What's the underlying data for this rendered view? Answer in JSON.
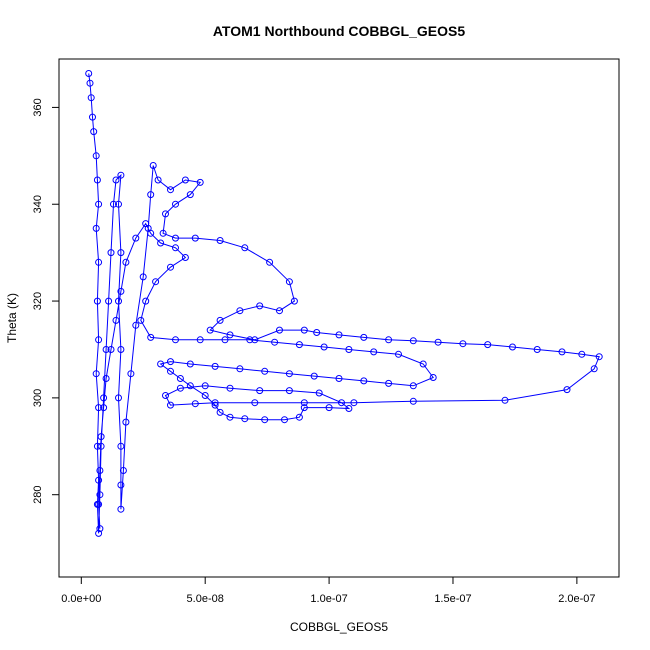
{
  "chart_data": {
    "type": "scatter",
    "title": "ATOM1 Northbound COBBGL_GEOS5",
    "xlabel": "COBBGL_GEOS5",
    "ylabel": "Theta (K)",
    "xlim": [
      -9e-09,
      2.17e-07
    ],
    "ylim": [
      263,
      370
    ],
    "x_ticks": [
      0,
      5e-08,
      1e-07,
      1.5e-07,
      2e-07
    ],
    "x_tick_labels": [
      "0.0e+00",
      "5.0e-08",
      "1.0e-07",
      "1.5e-07",
      "2.0e-07"
    ],
    "y_ticks": [
      280,
      300,
      320,
      340,
      360
    ],
    "y_tick_labels": [
      "280",
      "300",
      "320",
      "340",
      "360"
    ],
    "grid": false,
    "marker": "open-circle",
    "connect_points": true,
    "color": "#0000ff",
    "series": [
      {
        "points": [
          [
            3e-09,
            367
          ],
          [
            3.5e-09,
            365
          ],
          [
            4e-09,
            362
          ],
          [
            4.5e-09,
            358
          ],
          [
            5e-09,
            355
          ],
          [
            6e-09,
            350
          ],
          [
            6.5e-09,
            345
          ],
          [
            7e-09,
            340
          ],
          [
            6e-09,
            335
          ],
          [
            7e-09,
            328
          ],
          [
            6.5e-09,
            320
          ],
          [
            7e-09,
            312
          ],
          [
            6e-09,
            305
          ],
          [
            7e-09,
            298
          ],
          [
            6.5e-09,
            290
          ],
          [
            7e-09,
            283
          ],
          [
            6.5e-09,
            278
          ],
          [
            7e-09,
            272
          ],
          [
            7.5e-09,
            280
          ],
          [
            8e-09,
            290
          ],
          [
            9e-09,
            300
          ],
          [
            1e-08,
            310
          ],
          [
            1.1e-08,
            320
          ],
          [
            1.2e-08,
            330
          ],
          [
            1.3e-08,
            340
          ],
          [
            1.4e-08,
            345
          ],
          [
            1.6e-08,
            346
          ],
          [
            1.5e-08,
            340
          ],
          [
            1.6e-08,
            330
          ],
          [
            1.5e-08,
            320
          ],
          [
            1.6e-08,
            310
          ],
          [
            1.5e-08,
            300
          ],
          [
            1.6e-08,
            290
          ],
          [
            1.6e-08,
            282
          ],
          [
            1.6e-08,
            277
          ],
          [
            1.7e-08,
            285
          ],
          [
            1.8e-08,
            295
          ],
          [
            2e-08,
            305
          ],
          [
            2.2e-08,
            315
          ],
          [
            2.5e-08,
            325
          ],
          [
            2.7e-08,
            335
          ],
          [
            2.8e-08,
            342
          ],
          [
            2.9e-08,
            348
          ],
          [
            3.1e-08,
            345
          ],
          [
            3.6e-08,
            343
          ],
          [
            4.2e-08,
            345
          ],
          [
            4.8e-08,
            344.5
          ],
          [
            4.4e-08,
            342
          ],
          [
            3.8e-08,
            340
          ],
          [
            3.4e-08,
            338
          ],
          [
            3.3e-08,
            334
          ],
          [
            3.8e-08,
            333
          ],
          [
            4.6e-08,
            333
          ],
          [
            5.6e-08,
            332.5
          ],
          [
            6.6e-08,
            331
          ],
          [
            7.6e-08,
            328
          ],
          [
            8.4e-08,
            324
          ],
          [
            8.6e-08,
            320
          ],
          [
            8e-08,
            318
          ],
          [
            7.2e-08,
            319
          ],
          [
            6.4e-08,
            318
          ],
          [
            5.6e-08,
            316
          ],
          [
            5.2e-08,
            314
          ],
          [
            6e-08,
            313
          ],
          [
            7e-08,
            312
          ],
          [
            8e-08,
            314
          ],
          [
            9e-08,
            314
          ],
          [
            9.5e-08,
            313.5
          ],
          [
            1.04e-07,
            313
          ],
          [
            1.14e-07,
            312.5
          ],
          [
            1.24e-07,
            312
          ],
          [
            1.34e-07,
            311.8
          ],
          [
            1.44e-07,
            311.5
          ],
          [
            1.54e-07,
            311.2
          ],
          [
            1.64e-07,
            311
          ],
          [
            1.74e-07,
            310.5
          ],
          [
            1.84e-07,
            310
          ],
          [
            1.94e-07,
            309.5
          ],
          [
            2.02e-07,
            309
          ],
          [
            2.09e-07,
            308.5
          ],
          [
            2.07e-07,
            306
          ],
          [
            1.96e-07,
            301.7
          ],
          [
            1.71e-07,
            299.5
          ],
          [
            1.34e-07,
            299.3
          ],
          [
            1.1e-07,
            299
          ],
          [
            9e-08,
            299
          ],
          [
            7e-08,
            299
          ],
          [
            5.4e-08,
            299
          ],
          [
            4.6e-08,
            298.8
          ],
          [
            3.6e-08,
            298.5
          ],
          [
            3.4e-08,
            300.5
          ],
          [
            4e-08,
            302
          ],
          [
            5e-08,
            302.5
          ],
          [
            6e-08,
            302
          ],
          [
            7.2e-08,
            301.5
          ],
          [
            8.4e-08,
            301.5
          ],
          [
            9.6e-08,
            301
          ],
          [
            1.05e-07,
            299
          ],
          [
            1.08e-07,
            297.8
          ],
          [
            1e-07,
            298
          ],
          [
            9e-08,
            298
          ],
          [
            8.8e-08,
            296
          ],
          [
            8.2e-08,
            295.5
          ],
          [
            7.4e-08,
            295.5
          ],
          [
            6.6e-08,
            295.7
          ],
          [
            6e-08,
            296
          ],
          [
            5.6e-08,
            297
          ],
          [
            5.4e-08,
            298.5
          ],
          [
            5e-08,
            300.5
          ],
          [
            4.4e-08,
            302.5
          ],
          [
            4e-08,
            304
          ],
          [
            3.6e-08,
            305.5
          ],
          [
            3.2e-08,
            307
          ],
          [
            3.6e-08,
            307.5
          ],
          [
            4.4e-08,
            307
          ],
          [
            5.4e-08,
            306.5
          ],
          [
            6.4e-08,
            306
          ],
          [
            7.4e-08,
            305.5
          ],
          [
            8.4e-08,
            305
          ],
          [
            9.4e-08,
            304.5
          ],
          [
            1.04e-07,
            304
          ],
          [
            1.14e-07,
            303.5
          ],
          [
            1.24e-07,
            303
          ],
          [
            1.34e-07,
            302.5
          ],
          [
            1.42e-07,
            304.2
          ],
          [
            1.38e-07,
            307
          ],
          [
            1.28e-07,
            309
          ],
          [
            1.18e-07,
            309.5
          ],
          [
            1.08e-07,
            310
          ],
          [
            9.8e-08,
            310.5
          ],
          [
            8.8e-08,
            311
          ],
          [
            7.8e-08,
            311.5
          ],
          [
            6.8e-08,
            312
          ],
          [
            5.8e-08,
            312
          ],
          [
            4.8e-08,
            312
          ],
          [
            3.8e-08,
            312
          ],
          [
            2.8e-08,
            312.5
          ],
          [
            2.4e-08,
            316
          ],
          [
            2.6e-08,
            320
          ],
          [
            3e-08,
            324
          ],
          [
            3.6e-08,
            327
          ],
          [
            4.2e-08,
            329
          ],
          [
            3.8e-08,
            331
          ],
          [
            3.2e-08,
            332
          ],
          [
            2.8e-08,
            334
          ],
          [
            2.6e-08,
            336
          ],
          [
            2.2e-08,
            333
          ],
          [
            1.8e-08,
            328
          ],
          [
            1.6e-08,
            322
          ],
          [
            1.4e-08,
            316
          ],
          [
            1.2e-08,
            310
          ],
          [
            1e-08,
            304
          ],
          [
            9e-09,
            298
          ],
          [
            8e-09,
            292
          ],
          [
            7.5e-09,
            285
          ],
          [
            7e-09,
            278
          ],
          [
            7.5e-09,
            273
          ]
        ]
      }
    ]
  }
}
